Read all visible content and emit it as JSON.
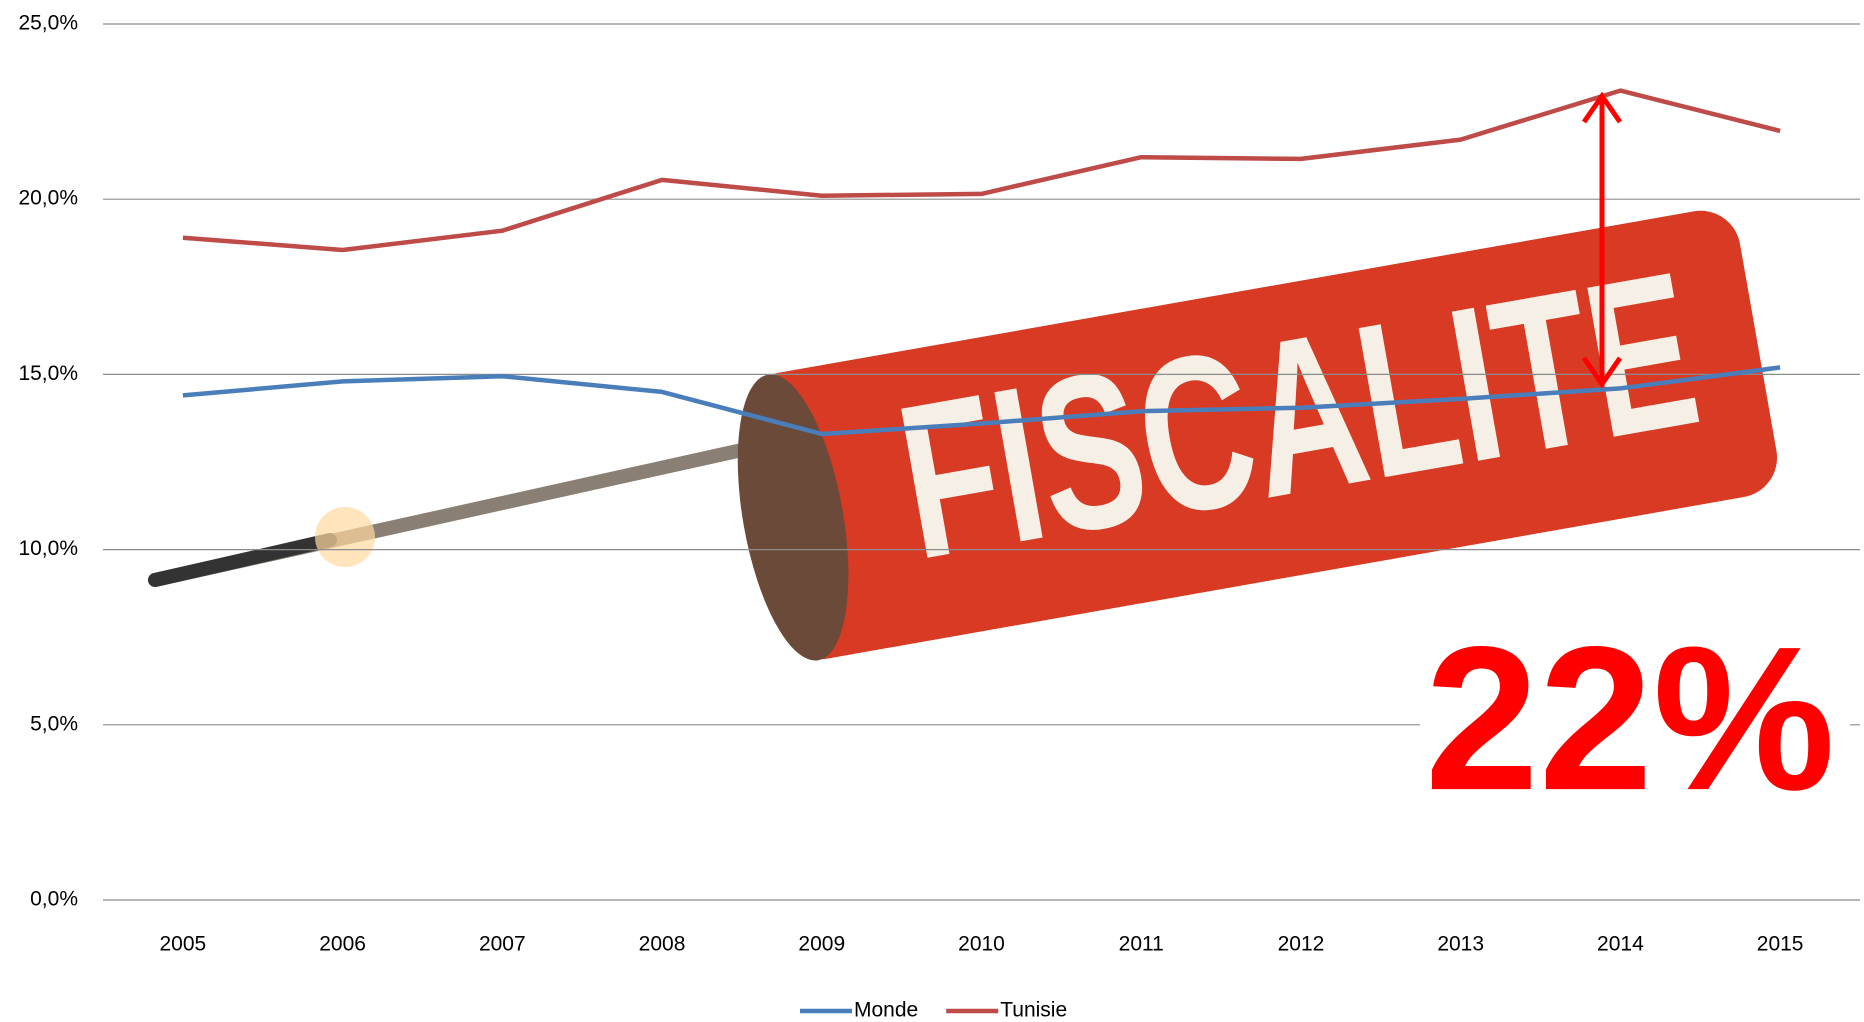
{
  "chart_data": {
    "type": "line",
    "categories": [
      "2005",
      "2006",
      "2007",
      "2008",
      "2009",
      "2010",
      "2011",
      "2012",
      "2013",
      "2014",
      "2015"
    ],
    "series": [
      {
        "name": "Monde",
        "color": "#4a7ebb",
        "values": [
          14.4,
          14.8,
          14.95,
          14.5,
          13.3,
          13.6,
          13.95,
          14.05,
          14.3,
          14.6,
          15.2
        ]
      },
      {
        "name": "Tunisie",
        "color": "#be4b48",
        "values": [
          18.9,
          18.55,
          19.1,
          20.55,
          20.1,
          20.15,
          21.2,
          21.15,
          21.7,
          23.1,
          21.95
        ]
      }
    ],
    "ylim": [
      0,
      25
    ],
    "yticks": [
      {
        "value": 0,
        "label": "0,0%"
      },
      {
        "value": 5,
        "label": "5,0%"
      },
      {
        "value": 10,
        "label": "10,0%"
      },
      {
        "value": 15,
        "label": "15,0%"
      },
      {
        "value": 20,
        "label": "20,0%"
      },
      {
        "value": 25,
        "label": "25,0%"
      }
    ],
    "grid": true,
    "legend": "bottom",
    "annotations": [
      "FISCALITE",
      "22%"
    ]
  }
}
